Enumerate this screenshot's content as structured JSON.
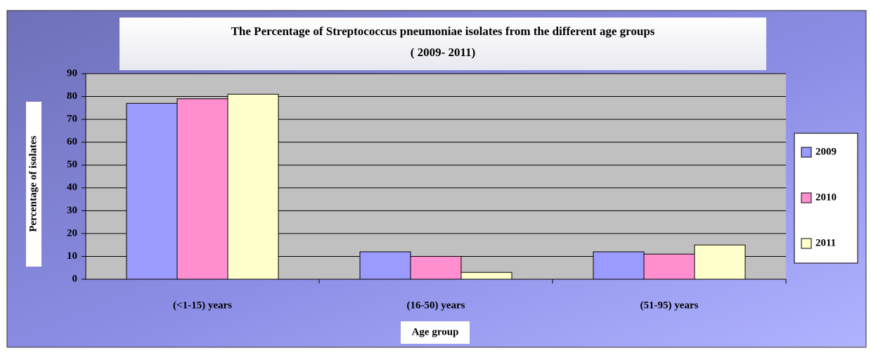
{
  "chart_data": {
    "type": "bar",
    "title": "The Percentage of Streptococcus pneumoniae isolates from the different age groups",
    "subtitle": "( 2009- 2011)",
    "y_label": "Percentage of isolates",
    "x_label": "Age group",
    "categories": [
      "(<1-15) years",
      "(16-50) years",
      "(51-95) years"
    ],
    "series": [
      {
        "name": "2009",
        "color": "#9a9aff",
        "values": [
          77,
          12,
          12
        ]
      },
      {
        "name": "2010",
        "color": "#ff8fcf",
        "values": [
          79,
          10,
          11
        ]
      },
      {
        "name": "2011",
        "color": "#ffffcc",
        "values": [
          81,
          3,
          15
        ]
      }
    ],
    "ylim": [
      0,
      90
    ],
    "yticks": [
      0,
      10,
      20,
      30,
      40,
      50,
      60,
      70,
      80,
      90
    ],
    "grid": true,
    "legend": "right"
  }
}
